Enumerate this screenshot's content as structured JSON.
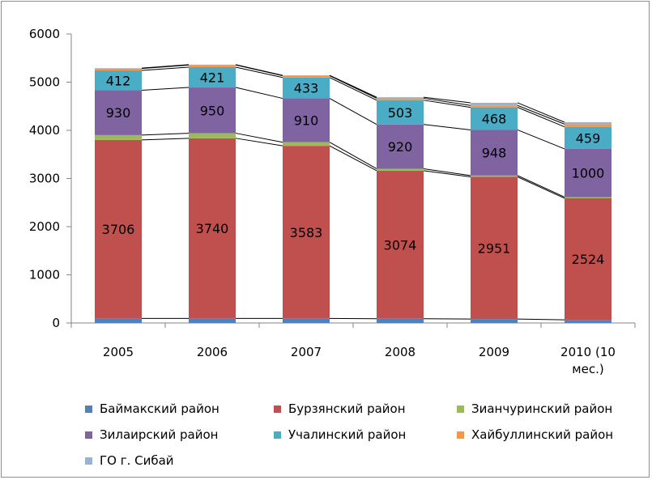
{
  "chart_data": {
    "type": "bar",
    "stacked": true,
    "categories": [
      "2005",
      "2006",
      "2007",
      "2008",
      "2009",
      "2010 (10 мес.)"
    ],
    "ylim": [
      0,
      6000
    ],
    "yticks": [
      "0",
      "1000",
      "2000",
      "3000",
      "4000",
      "5000",
      "6000"
    ],
    "grid": false,
    "series_lines": true,
    "legend_position": "bottom",
    "series": [
      {
        "name": "Баймакский район",
        "color": "#4f81bd",
        "values": [
          95,
          95,
          95,
          88,
          82,
          65
        ],
        "show_labels": false
      },
      {
        "name": "Бурзянский район",
        "color": "#c0504d",
        "values": [
          3706,
          3740,
          3583,
          3074,
          2951,
          2524
        ],
        "show_labels": true
      },
      {
        "name": "Зианчуринский район",
        "color": "#9bbb59",
        "values": [
          100,
          105,
          75,
          40,
          28,
          25
        ],
        "show_labels": false
      },
      {
        "name": "Зилаирский район",
        "color": "#8064a2",
        "values": [
          930,
          950,
          910,
          920,
          948,
          1000
        ],
        "show_labels": true
      },
      {
        "name": "Учалинский район",
        "color": "#4bacc6",
        "values": [
          412,
          421,
          433,
          503,
          468,
          459
        ],
        "show_labels": true
      },
      {
        "name": "Хайбуллинский район",
        "color": "#f79646",
        "values": [
          40,
          45,
          38,
          40,
          40,
          55
        ],
        "show_labels": false
      },
      {
        "name": "ГО г. Сибай",
        "color": "#95b3d7",
        "values": [
          8,
          8,
          8,
          22,
          55,
          40
        ],
        "show_labels": false
      }
    ]
  }
}
